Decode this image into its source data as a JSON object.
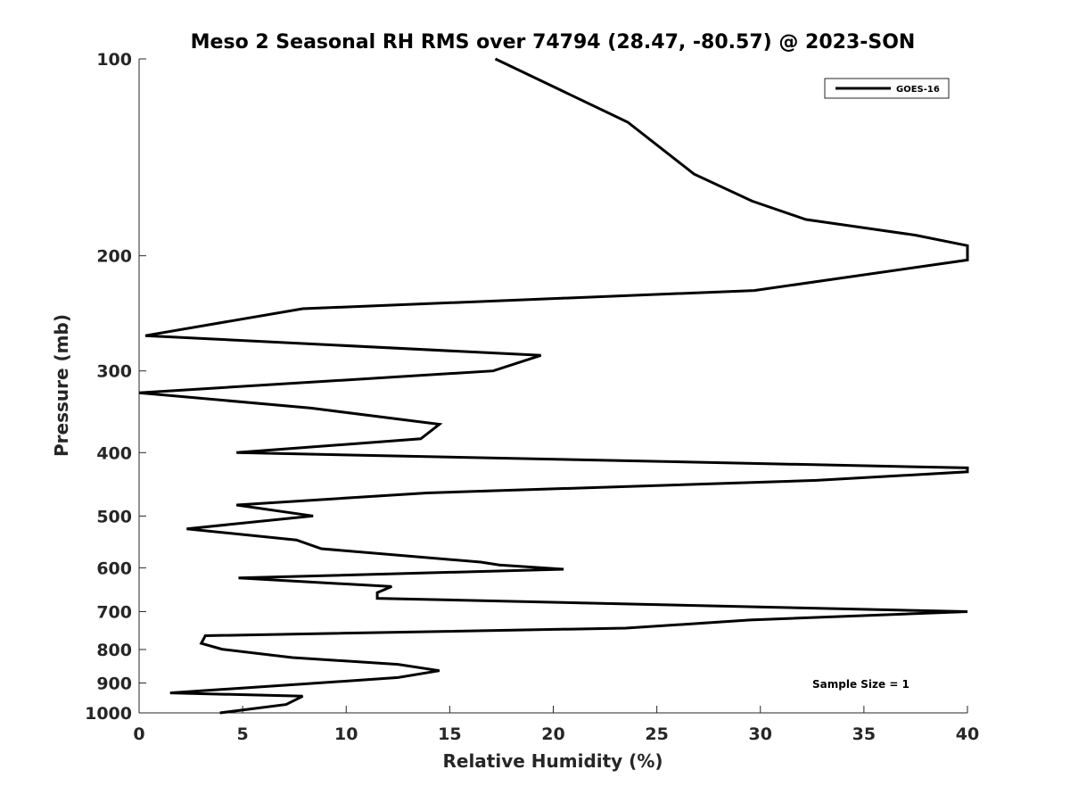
{
  "chart_data": {
    "type": "line",
    "title": "Meso 2 Seasonal RH RMS over 74794 (28.47, -80.57) @ 2023-SON",
    "xlabel": "Relative Humidity (%)",
    "ylabel": "Pressure (mb)",
    "xlim": [
      0,
      40
    ],
    "ylim": [
      100,
      1000
    ],
    "yscale": "log",
    "yreversed": true,
    "grid": false,
    "xticks": [
      0,
      5,
      10,
      15,
      20,
      25,
      30,
      35,
      40
    ],
    "xtick_labels": [
      "0",
      "5",
      "10",
      "15",
      "20",
      "25",
      "30",
      "35",
      "40"
    ],
    "yticks": [
      100,
      200,
      300,
      400,
      500,
      600,
      700,
      800,
      900,
      1000
    ],
    "ytick_labels": [
      "100",
      "200",
      "300",
      "400",
      "500",
      "600",
      "700",
      "800",
      "900",
      "1000"
    ],
    "legend_position": "top-right",
    "annotation": "Sample Size = 1",
    "series": [
      {
        "name": "GOES-16",
        "color": "#000000",
        "points": [
          [
            17.2,
            100
          ],
          [
            23.6,
            125
          ],
          [
            26.8,
            150
          ],
          [
            29.6,
            165
          ],
          [
            32.2,
            176
          ],
          [
            37.5,
            186
          ],
          [
            40.0,
            193
          ],
          [
            40.0,
            203
          ],
          [
            29.7,
            226
          ],
          [
            7.9,
            241
          ],
          [
            0.3,
            265
          ],
          [
            19.4,
            284
          ],
          [
            17.1,
            300
          ],
          [
            0.0,
            324
          ],
          [
            8.3,
            342
          ],
          [
            14.5,
            362
          ],
          [
            13.6,
            381
          ],
          [
            4.7,
            400
          ],
          [
            40.0,
            422
          ],
          [
            40.0,
            428
          ],
          [
            32.7,
            441
          ],
          [
            13.9,
            461
          ],
          [
            4.7,
            481
          ],
          [
            8.4,
            500
          ],
          [
            2.3,
            523
          ],
          [
            7.6,
            544
          ],
          [
            8.8,
            561
          ],
          [
            16.5,
            588
          ],
          [
            17.4,
            594
          ],
          [
            20.5,
            603
          ],
          [
            4.8,
            622
          ],
          [
            12.2,
            641
          ],
          [
            11.5,
            655
          ],
          [
            11.5,
            668
          ],
          [
            40.0,
            700
          ],
          [
            29.5,
            721
          ],
          [
            23.5,
            742
          ],
          [
            3.2,
            762
          ],
          [
            3.0,
            783
          ],
          [
            4.0,
            799
          ],
          [
            7.4,
            823
          ],
          [
            12.5,
            843
          ],
          [
            14.5,
            862
          ],
          [
            12.5,
            883
          ],
          [
            8.0,
            903
          ],
          [
            1.5,
            932
          ],
          [
            7.9,
            943
          ],
          [
            7.1,
            971
          ],
          [
            3.9,
            1000
          ]
        ]
      }
    ]
  }
}
